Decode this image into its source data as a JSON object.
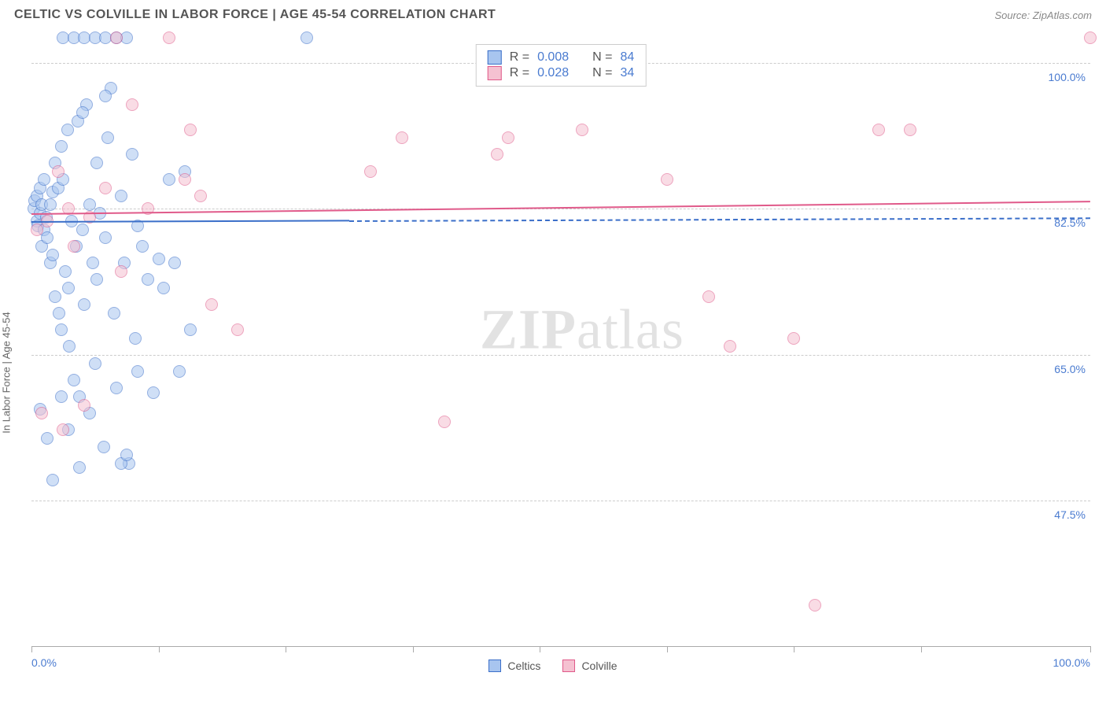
{
  "header": {
    "title": "CELTIC VS COLVILLE IN LABOR FORCE | AGE 45-54 CORRELATION CHART",
    "source": "Source: ZipAtlas.com"
  },
  "watermark": {
    "bold": "ZIP",
    "rest": "atlas"
  },
  "chart": {
    "type": "scatter",
    "y_axis_label": "In Labor Force | Age 45-54",
    "background_color": "#ffffff",
    "grid_color": "#cccccc",
    "axis_color": "#aaaaaa",
    "tick_label_color": "#4a7bd0",
    "x_axis": {
      "min": 0,
      "max": 100,
      "label_left": "0.0%",
      "label_right": "100.0%",
      "ticks": [
        0,
        12,
        24,
        36,
        48,
        60,
        72,
        84,
        100
      ]
    },
    "y_axis": {
      "min": 30,
      "max": 103,
      "gridlines": [
        {
          "value": 100.0,
          "label": "100.0%"
        },
        {
          "value": 82.5,
          "label": "82.5%"
        },
        {
          "value": 65.0,
          "label": "65.0%"
        },
        {
          "value": 47.5,
          "label": "47.5%"
        }
      ]
    },
    "point_radius": 8,
    "point_opacity": 0.55,
    "series": [
      {
        "name": "Celtics",
        "fill": "#a8c5ef",
        "stroke": "#3b6fc9",
        "r_value": "0.008",
        "n_value": "84",
        "trend": {
          "y_start": 81.0,
          "y_end": 81.5,
          "dash_from_x": 30,
          "line_width": 2
        },
        "points": [
          [
            0.2,
            82.5
          ],
          [
            0.3,
            83.5
          ],
          [
            0.5,
            81.0
          ],
          [
            0.5,
            84.0
          ],
          [
            0.6,
            80.5
          ],
          [
            0.8,
            82.0
          ],
          [
            0.8,
            85.0
          ],
          [
            1.0,
            83.0
          ],
          [
            1.0,
            78.0
          ],
          [
            1.2,
            86.0
          ],
          [
            1.2,
            80.0
          ],
          [
            1.4,
            81.5
          ],
          [
            1.5,
            79.0
          ],
          [
            1.8,
            83.0
          ],
          [
            1.8,
            76.0
          ],
          [
            2.0,
            84.5
          ],
          [
            2.0,
            77.0
          ],
          [
            2.2,
            88.0
          ],
          [
            2.2,
            72.0
          ],
          [
            2.5,
            85.0
          ],
          [
            2.6,
            70.0
          ],
          [
            2.8,
            90.0
          ],
          [
            2.8,
            68.0
          ],
          [
            3.0,
            86.0
          ],
          [
            3.0,
            103.0
          ],
          [
            3.2,
            75.0
          ],
          [
            3.4,
            92.0
          ],
          [
            3.5,
            73.0
          ],
          [
            3.6,
            66.0
          ],
          [
            3.8,
            81.0
          ],
          [
            4.0,
            103.0
          ],
          [
            4.0,
            62.0
          ],
          [
            4.2,
            78.0
          ],
          [
            4.4,
            93.0
          ],
          [
            4.5,
            60.0
          ],
          [
            4.8,
            80.0
          ],
          [
            5.0,
            103.0
          ],
          [
            5.0,
            71.0
          ],
          [
            5.2,
            95.0
          ],
          [
            5.5,
            58.0
          ],
          [
            5.8,
            76.0
          ],
          [
            6.0,
            103.0
          ],
          [
            6.0,
            64.0
          ],
          [
            6.2,
            88.0
          ],
          [
            6.5,
            82.0
          ],
          [
            6.8,
            54.0
          ],
          [
            7.0,
            103.0
          ],
          [
            7.0,
            79.0
          ],
          [
            7.2,
            91.0
          ],
          [
            7.5,
            97.0
          ],
          [
            7.8,
            70.0
          ],
          [
            8.0,
            103.0
          ],
          [
            8.0,
            61.0
          ],
          [
            8.5,
            84.0
          ],
          [
            8.8,
            76.0
          ],
          [
            9.0,
            103.0
          ],
          [
            9.2,
            52.0
          ],
          [
            9.5,
            89.0
          ],
          [
            9.8,
            67.0
          ],
          [
            10.0,
            80.5
          ],
          [
            10.0,
            63.0
          ],
          [
            10.5,
            78.0
          ],
          [
            11.0,
            74.0
          ],
          [
            11.5,
            60.5
          ],
          [
            12.0,
            76.5
          ],
          [
            12.5,
            73.0
          ],
          [
            13.0,
            86.0
          ],
          [
            13.5,
            76.0
          ],
          [
            14.0,
            63.0
          ],
          [
            14.5,
            87.0
          ],
          [
            15.0,
            68.0
          ],
          [
            8.5,
            52.0
          ],
          [
            9.0,
            53.0
          ],
          [
            2.0,
            50.0
          ],
          [
            3.5,
            56.0
          ],
          [
            4.5,
            51.5
          ],
          [
            1.5,
            55.0
          ],
          [
            0.8,
            58.5
          ],
          [
            2.8,
            60.0
          ],
          [
            7.0,
            96.0
          ],
          [
            5.5,
            83.0
          ],
          [
            6.2,
            74.0
          ],
          [
            4.8,
            94.0
          ],
          [
            26.0,
            103.0
          ]
        ]
      },
      {
        "name": "Colville",
        "fill": "#f5c1d1",
        "stroke": "#e05a8a",
        "r_value": "0.028",
        "n_value": "34",
        "trend": {
          "y_start": 82.0,
          "y_end": 83.5,
          "dash_from_x": 100,
          "line_width": 2
        },
        "points": [
          [
            0.5,
            80.0
          ],
          [
            1.5,
            81.0
          ],
          [
            2.5,
            87.0
          ],
          [
            3.5,
            82.5
          ],
          [
            4.0,
            78.0
          ],
          [
            5.5,
            81.5
          ],
          [
            7.0,
            85.0
          ],
          [
            8.5,
            75.0
          ],
          [
            3.0,
            56.0
          ],
          [
            5.0,
            59.0
          ],
          [
            1.0,
            58.0
          ],
          [
            13.0,
            103.0
          ],
          [
            8.0,
            103.0
          ],
          [
            9.5,
            95.0
          ],
          [
            11.0,
            82.5
          ],
          [
            14.5,
            86.0
          ],
          [
            15.0,
            92.0
          ],
          [
            17.0,
            71.0
          ],
          [
            16.0,
            84.0
          ],
          [
            19.5,
            68.0
          ],
          [
            32.0,
            87.0
          ],
          [
            35.0,
            91.0
          ],
          [
            39.0,
            57.0
          ],
          [
            44.0,
            89.0
          ],
          [
            45.0,
            91.0
          ],
          [
            52.0,
            92.0
          ],
          [
            60.0,
            86.0
          ],
          [
            64.0,
            72.0
          ],
          [
            66.0,
            66.0
          ],
          [
            72.0,
            67.0
          ],
          [
            74.0,
            35.0
          ],
          [
            80.0,
            92.0
          ],
          [
            83.0,
            92.0
          ],
          [
            100.0,
            103.0
          ]
        ]
      }
    ],
    "legend_bottom": [
      {
        "label": "Celtics",
        "fill": "#a8c5ef",
        "stroke": "#3b6fc9"
      },
      {
        "label": "Colville",
        "fill": "#f5c1d1",
        "stroke": "#e05a8a"
      }
    ]
  }
}
